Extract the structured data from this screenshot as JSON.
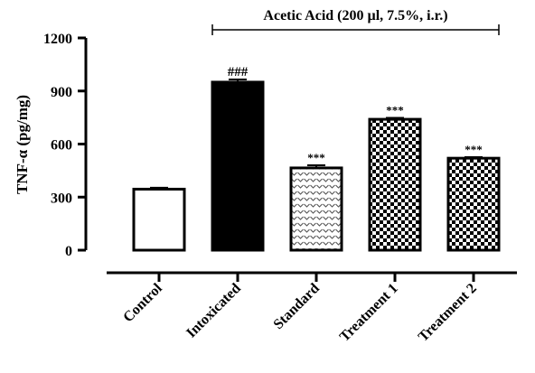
{
  "chart_data": {
    "type": "bar",
    "title": "",
    "xlabel": "",
    "ylabel": "TNF-α (pg/mg)",
    "ylim": [
      0,
      1200
    ],
    "yticks": [
      "0",
      "300",
      "600",
      "900",
      "1200"
    ],
    "categories": [
      "Control",
      "Intoxicated",
      "Standard",
      "Treatment 1",
      "Treatment 2"
    ],
    "values": [
      345,
      950,
      465,
      740,
      520
    ],
    "errors": [
      8,
      15,
      15,
      8,
      6
    ],
    "significance": [
      "",
      "###",
      "***",
      "***",
      "***"
    ],
    "fills": [
      "white",
      "black",
      "wave",
      "checker",
      "checker"
    ],
    "bracket_label": "Acetic Acid (200 µl, 7.5%, i.r.)",
    "bracket_span": [
      "Intoxicated",
      "Treatment 2"
    ],
    "grid": false,
    "legend": "none"
  }
}
